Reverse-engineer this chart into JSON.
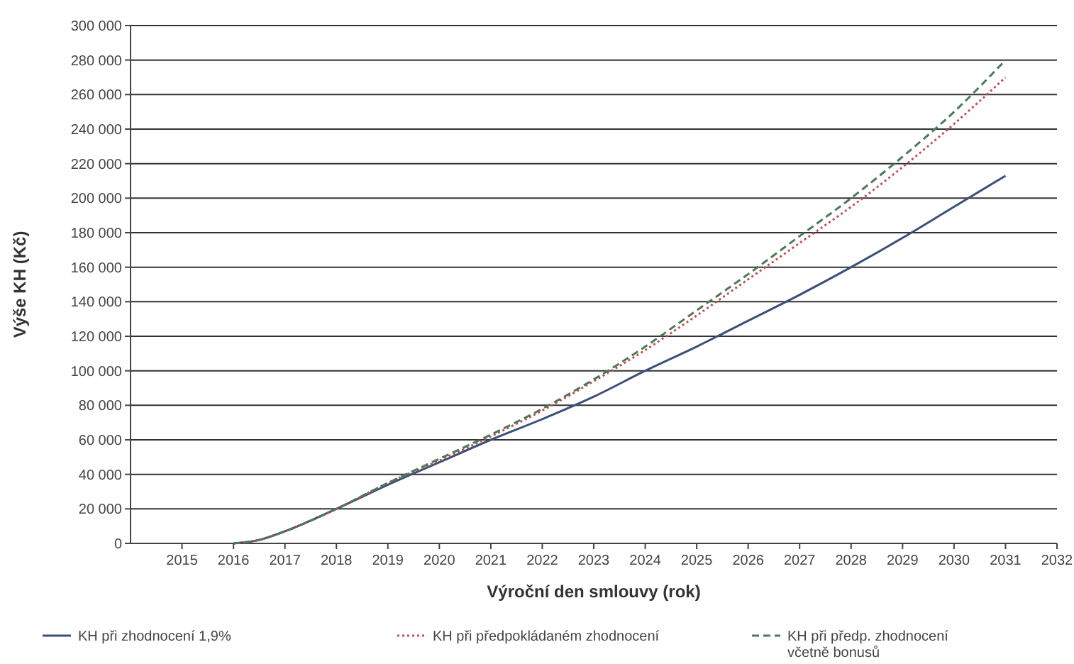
{
  "chart_data": {
    "type": "line",
    "xlabel": "Výroční den smlouvy (rok)",
    "ylabel": "Výše KH (Kč)",
    "x": [
      2016,
      2016.5,
      2017,
      2018,
      2019,
      2020,
      2021,
      2022,
      2023,
      2024,
      2025,
      2026,
      2027,
      2028,
      2029,
      2030,
      2031
    ],
    "xlim": [
      2014,
      2032
    ],
    "xticks": [
      2015,
      2016,
      2017,
      2018,
      2019,
      2020,
      2021,
      2022,
      2023,
      2024,
      2025,
      2026,
      2027,
      2028,
      2029,
      2030,
      2031,
      2032
    ],
    "ylim": [
      0,
      300000
    ],
    "yticks": [
      {
        "value": 0,
        "label": "0"
      },
      {
        "value": 20000,
        "label": "20 000"
      },
      {
        "value": 40000,
        "label": "40 000"
      },
      {
        "value": 60000,
        "label": "60 000"
      },
      {
        "value": 80000,
        "label": "80 000"
      },
      {
        "value": 100000,
        "label": "100 000"
      },
      {
        "value": 120000,
        "label": "120 000"
      },
      {
        "value": 140000,
        "label": "140 000"
      },
      {
        "value": 160000,
        "label": "160 000"
      },
      {
        "value": 180000,
        "label": "180 000"
      },
      {
        "value": 200000,
        "label": "200 000"
      },
      {
        "value": 220000,
        "label": "220 000"
      },
      {
        "value": 240000,
        "label": "240 000"
      },
      {
        "value": 260000,
        "label": "260 000"
      },
      {
        "value": 280000,
        "label": "280 000"
      },
      {
        "value": 300000,
        "label": "300 000"
      }
    ],
    "grid": "y",
    "legend": "bottom",
    "series": [
      {
        "name": "KH při zhodnocení 1,9%",
        "color": "#3a4f7a",
        "line_style": "solid",
        "values": [
          0,
          2000,
          7000,
          20000,
          34000,
          47000,
          60000,
          72000,
          85000,
          100000,
          114000,
          129000,
          144000,
          160000,
          177000,
          195000,
          213000
        ]
      },
      {
        "name": "KH při předpokládaném zhodnocení",
        "color": "#c0504d",
        "line_style": "dotted",
        "values": [
          0,
          2000,
          7000,
          20000,
          35000,
          48000,
          62000,
          77000,
          94000,
          112000,
          132000,
          153000,
          174000,
          195000,
          218000,
          243000,
          270000
        ]
      },
      {
        "name": "KH při předp. zhodnocení\nvčetně bonusů",
        "color": "#4a7a5a",
        "line_style": "dashed",
        "values": [
          0,
          2000,
          7000,
          20000,
          35000,
          49000,
          63000,
          78000,
          95000,
          114000,
          135000,
          156000,
          178000,
          200000,
          224000,
          250000,
          280000
        ]
      }
    ]
  }
}
